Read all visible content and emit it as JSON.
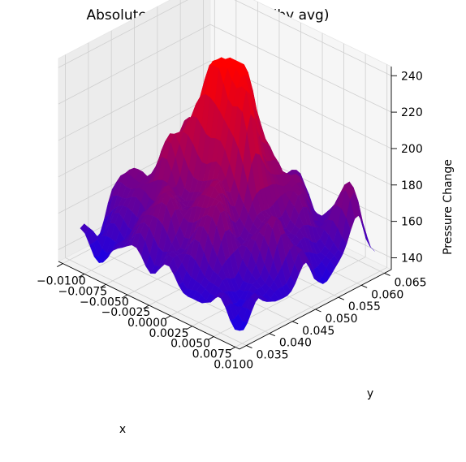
{
  "chart_data": {
    "type": "surface3d",
    "title": "Absolute Pressure Change (by avg)",
    "xlabel": "x",
    "ylabel": "y",
    "zlabel": "Pressure Change",
    "x_ticks": [
      "−0.0100",
      "−0.0075",
      "−0.0050",
      "−0.0025",
      "0.0000",
      "0.0025",
      "0.0050",
      "0.0075",
      "0.0100"
    ],
    "y_ticks": [
      "0.035",
      "0.040",
      "0.045",
      "0.050",
      "0.055",
      "0.060",
      "0.065"
    ],
    "z_ticks": [
      "140",
      "160",
      "180",
      "200",
      "220",
      "240"
    ],
    "xlim": [
      -0.0105,
      0.0105
    ],
    "ylim": [
      0.0335,
      0.0665
    ],
    "zlim": [
      128,
      248
    ],
    "z_range_shown": [
      132,
      242
    ],
    "colormap": [
      "#0000ff",
      "#ff0000"
    ],
    "grid": true
  }
}
